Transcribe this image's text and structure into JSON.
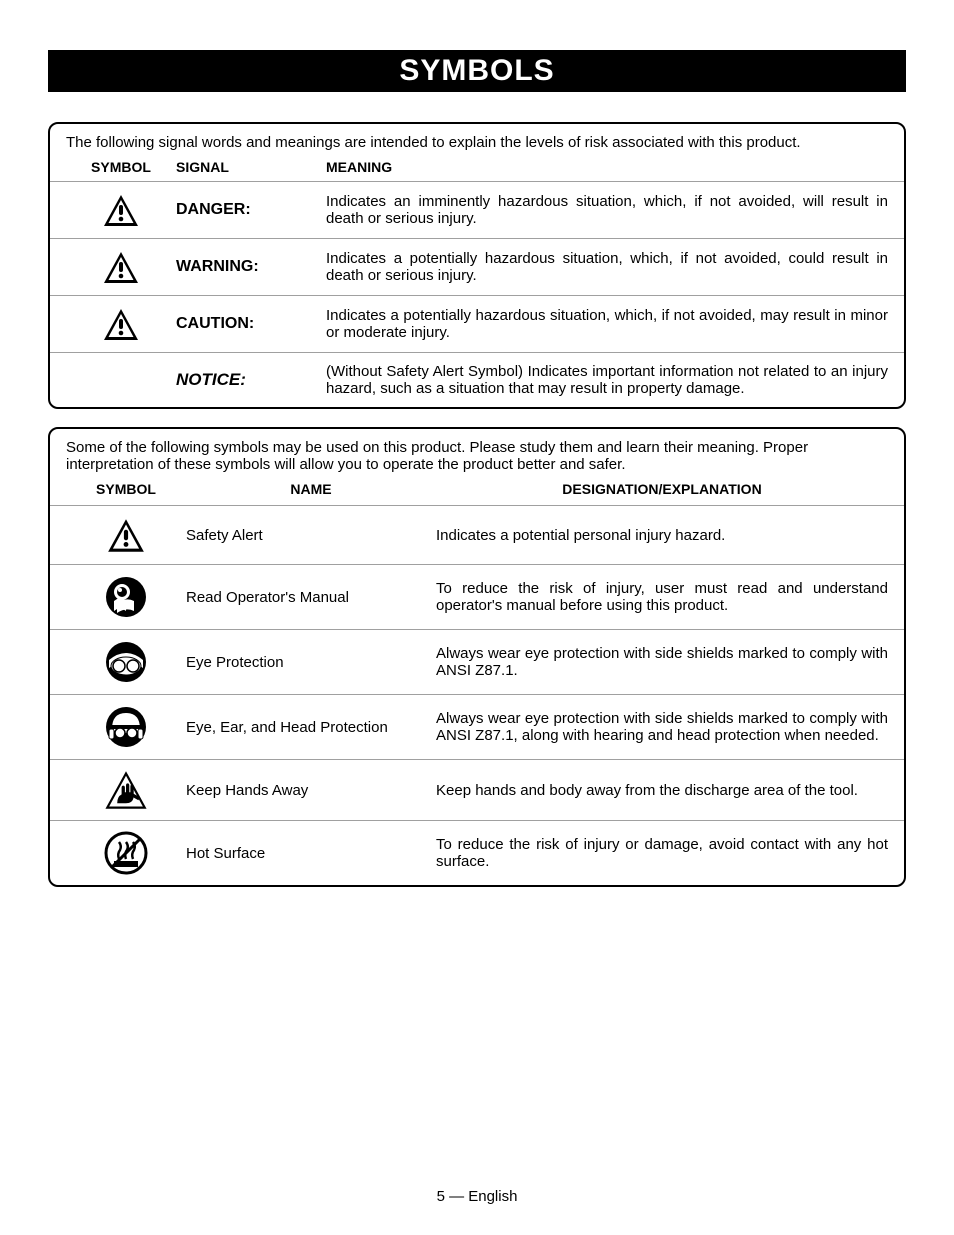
{
  "header": "SYMBOLS",
  "box1": {
    "intro": "The following signal words and meanings are intended to explain the levels of risk associated with this product.",
    "col_symbol": "SYMBOL",
    "col_signal": "SIGNAL",
    "col_meaning": "MEANING",
    "rows": [
      {
        "signal": "DANGER:",
        "meaning": "Indicates an imminently hazardous situation, which, if not avoided, will result in death or serious injury.",
        "has_icon": true
      },
      {
        "signal": "WARNING:",
        "meaning": "Indicates a potentially hazardous situation, which, if not avoided, could result in death or serious injury.",
        "has_icon": true
      },
      {
        "signal": "CAUTION:",
        "meaning": "Indicates a potentially hazardous situation, which, if not avoided, may result in minor or moderate injury.",
        "has_icon": true
      },
      {
        "signal": "NOTICE:",
        "meaning": "(Without Safety Alert Symbol) Indicates important information not related to an injury hazard, such as a situation that may result in property damage.",
        "has_icon": false,
        "italic": true
      }
    ]
  },
  "box2": {
    "intro": "Some of the following symbols may be used on this product. Please study them and learn their meaning. Proper interpretation of these symbols will allow you to operate the product better and safer.",
    "col_symbol": "SYMBOL",
    "col_name": "NAME",
    "col_des": "DESIGNATION/EXPLANATION",
    "rows": [
      {
        "icon": "alert",
        "name": "Safety Alert",
        "des": "Indicates a potential personal injury hazard."
      },
      {
        "icon": "manual",
        "name": "Read  Operator's Manual",
        "des": "To reduce the risk of injury, user must read and understand operator's manual before using this product."
      },
      {
        "icon": "eye",
        "name": "Eye Protection",
        "des": "Always wear eye protection with side shields marked to comply with ANSI Z87.1."
      },
      {
        "icon": "eeh",
        "name": "Eye, Ear, and Head Protection",
        "des": "Always wear eye protection with side shields marked to comply with ANSI Z87.1, along with hearing and head protection when needed."
      },
      {
        "icon": "hands",
        "name": "Keep Hands Away",
        "des": "Keep hands and body away from the discharge area of the tool."
      },
      {
        "icon": "hot",
        "name": "Hot Surface",
        "des": "To reduce the risk of injury or damage, avoid contact with any hot surface."
      }
    ]
  },
  "footer": "5 — English"
}
